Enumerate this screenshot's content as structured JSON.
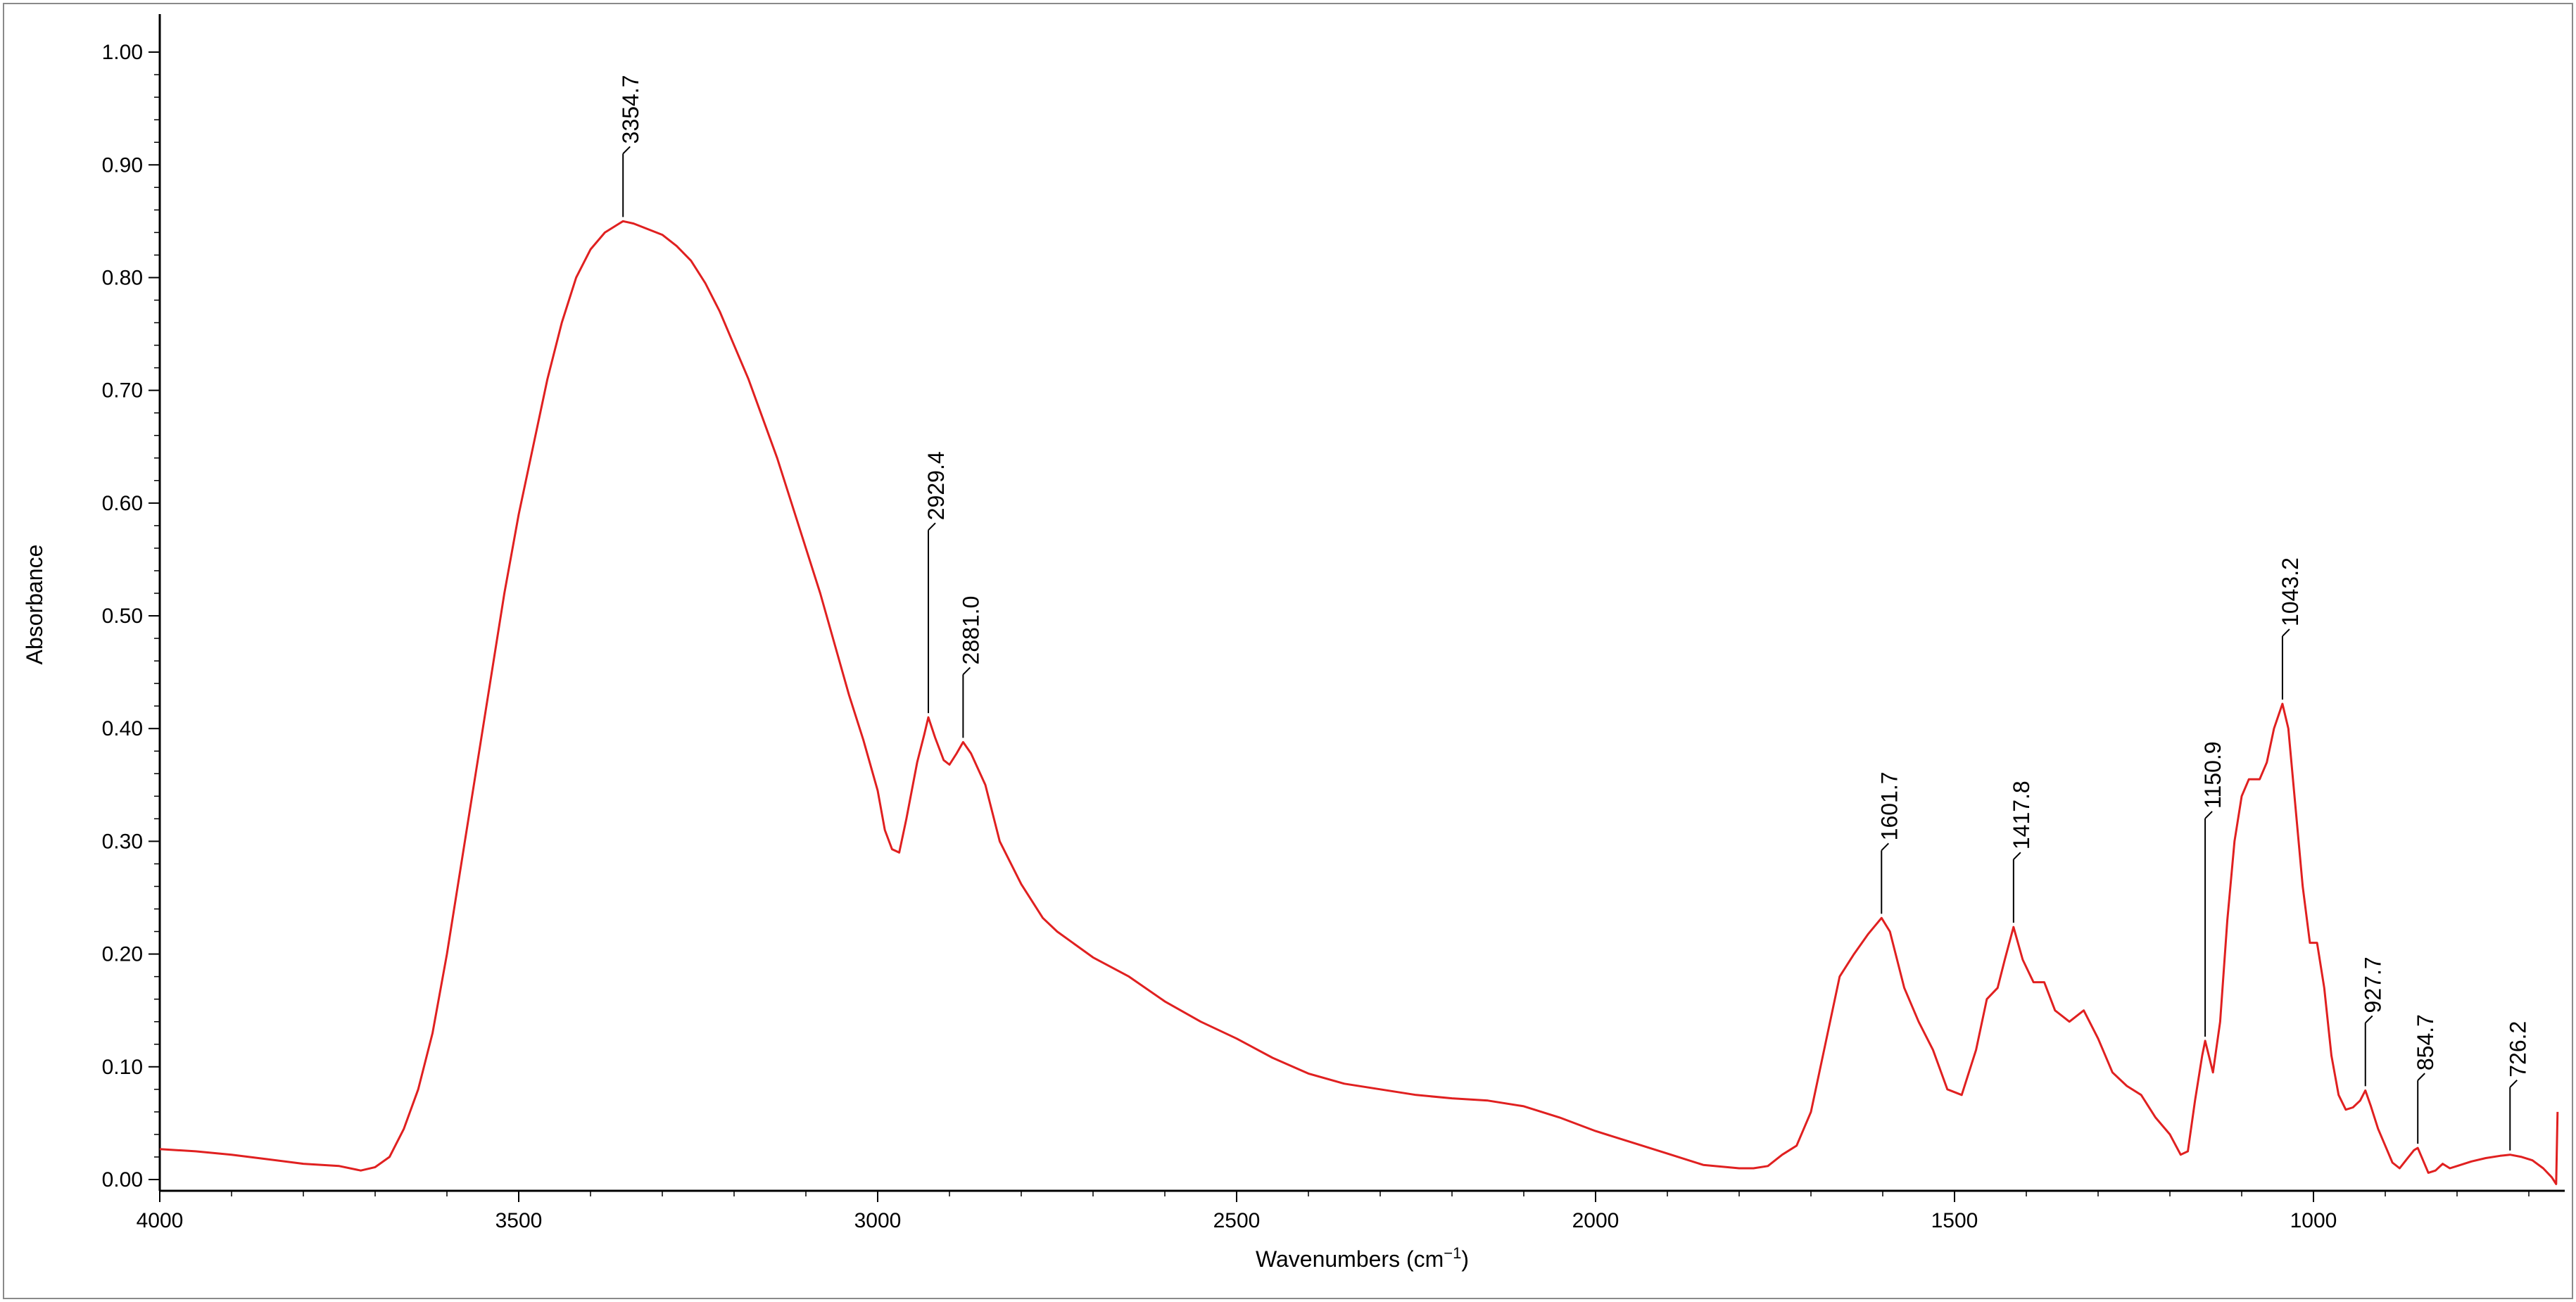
{
  "chart_data": {
    "type": "line",
    "title": "",
    "xlabel": "Wavenumbers (cm",
    "xlabel_superscript": "−1",
    "xlabel_suffix": ")",
    "ylabel": "Absorbance",
    "xlim": [
      4000,
      650
    ],
    "ylim": [
      -0.01,
      1.03
    ],
    "x_reversed": true,
    "grid": false,
    "line_color": "#e02020",
    "axis_color": "#000000",
    "x_ticks": [
      {
        "value": 4000,
        "label": "4000"
      },
      {
        "value": 3500,
        "label": "3500"
      },
      {
        "value": 3000,
        "label": "3000"
      },
      {
        "value": 2500,
        "label": "2500"
      },
      {
        "value": 2000,
        "label": "2000"
      },
      {
        "value": 1500,
        "label": "1500"
      },
      {
        "value": 1000,
        "label": "1000"
      }
    ],
    "y_ticks": [
      {
        "value": 0.0,
        "label": "0.00"
      },
      {
        "value": 0.1,
        "label": "0.10"
      },
      {
        "value": 0.2,
        "label": "0.20"
      },
      {
        "value": 0.3,
        "label": "0.30"
      },
      {
        "value": 0.4,
        "label": "0.40"
      },
      {
        "value": 0.5,
        "label": "0.50"
      },
      {
        "value": 0.6,
        "label": "0.60"
      },
      {
        "value": 0.7,
        "label": "0.70"
      },
      {
        "value": 0.8,
        "label": "0.80"
      },
      {
        "value": 0.9,
        "label": "0.90"
      },
      {
        "value": 1.0,
        "label": "1.00"
      }
    ],
    "series": [
      {
        "name": "spectrum",
        "points": [
          [
            4000,
            0.027
          ],
          [
            3950,
            0.025
          ],
          [
            3900,
            0.022
          ],
          [
            3850,
            0.018
          ],
          [
            3800,
            0.014
          ],
          [
            3750,
            0.012
          ],
          [
            3720,
            0.008
          ],
          [
            3700,
            0.011
          ],
          [
            3680,
            0.02
          ],
          [
            3660,
            0.045
          ],
          [
            3640,
            0.08
          ],
          [
            3620,
            0.13
          ],
          [
            3600,
            0.2
          ],
          [
            3580,
            0.28
          ],
          [
            3560,
            0.36
          ],
          [
            3540,
            0.44
          ],
          [
            3520,
            0.52
          ],
          [
            3500,
            0.59
          ],
          [
            3480,
            0.65
          ],
          [
            3460,
            0.71
          ],
          [
            3440,
            0.76
          ],
          [
            3420,
            0.8
          ],
          [
            3400,
            0.825
          ],
          [
            3380,
            0.84
          ],
          [
            3360,
            0.848
          ],
          [
            3354.7,
            0.85
          ],
          [
            3340,
            0.848
          ],
          [
            3320,
            0.843
          ],
          [
            3300,
            0.838
          ],
          [
            3280,
            0.828
          ],
          [
            3260,
            0.815
          ],
          [
            3240,
            0.795
          ],
          [
            3220,
            0.77
          ],
          [
            3200,
            0.74
          ],
          [
            3180,
            0.71
          ],
          [
            3160,
            0.675
          ],
          [
            3140,
            0.64
          ],
          [
            3120,
            0.6
          ],
          [
            3100,
            0.56
          ],
          [
            3080,
            0.52
          ],
          [
            3060,
            0.475
          ],
          [
            3040,
            0.43
          ],
          [
            3020,
            0.39
          ],
          [
            3000,
            0.345
          ],
          [
            2990,
            0.31
          ],
          [
            2980,
            0.293
          ],
          [
            2970,
            0.29
          ],
          [
            2960,
            0.32
          ],
          [
            2945,
            0.37
          ],
          [
            2935,
            0.395
          ],
          [
            2929.4,
            0.41
          ],
          [
            2920,
            0.392
          ],
          [
            2908,
            0.372
          ],
          [
            2900,
            0.368
          ],
          [
            2890,
            0.378
          ],
          [
            2881.0,
            0.388
          ],
          [
            2870,
            0.378
          ],
          [
            2850,
            0.35
          ],
          [
            2830,
            0.3
          ],
          [
            2800,
            0.262
          ],
          [
            2770,
            0.232
          ],
          [
            2750,
            0.22
          ],
          [
            2700,
            0.197
          ],
          [
            2650,
            0.18
          ],
          [
            2600,
            0.158
          ],
          [
            2550,
            0.14
          ],
          [
            2500,
            0.125
          ],
          [
            2450,
            0.108
          ],
          [
            2400,
            0.094
          ],
          [
            2350,
            0.085
          ],
          [
            2300,
            0.08
          ],
          [
            2250,
            0.075
          ],
          [
            2200,
            0.072
          ],
          [
            2150,
            0.07
          ],
          [
            2100,
            0.065
          ],
          [
            2050,
            0.055
          ],
          [
            2000,
            0.043
          ],
          [
            1950,
            0.033
          ],
          [
            1900,
            0.023
          ],
          [
            1850,
            0.013
          ],
          [
            1800,
            0.01
          ],
          [
            1780,
            0.01
          ],
          [
            1760,
            0.012
          ],
          [
            1740,
            0.022
          ],
          [
            1720,
            0.03
          ],
          [
            1700,
            0.06
          ],
          [
            1680,
            0.12
          ],
          [
            1660,
            0.18
          ],
          [
            1640,
            0.2
          ],
          [
            1620,
            0.218
          ],
          [
            1601.7,
            0.232
          ],
          [
            1590,
            0.22
          ],
          [
            1570,
            0.17
          ],
          [
            1550,
            0.14
          ],
          [
            1530,
            0.115
          ],
          [
            1510,
            0.08
          ],
          [
            1490,
            0.075
          ],
          [
            1470,
            0.115
          ],
          [
            1455,
            0.16
          ],
          [
            1440,
            0.17
          ],
          [
            1430,
            0.195
          ],
          [
            1417.8,
            0.224
          ],
          [
            1405,
            0.195
          ],
          [
            1390,
            0.175
          ],
          [
            1375,
            0.175
          ],
          [
            1360,
            0.15
          ],
          [
            1340,
            0.14
          ],
          [
            1320,
            0.15
          ],
          [
            1300,
            0.125
          ],
          [
            1280,
            0.095
          ],
          [
            1260,
            0.083
          ],
          [
            1240,
            0.075
          ],
          [
            1220,
            0.055
          ],
          [
            1200,
            0.04
          ],
          [
            1185,
            0.022
          ],
          [
            1175,
            0.025
          ],
          [
            1165,
            0.07
          ],
          [
            1155,
            0.11
          ],
          [
            1150.9,
            0.123
          ],
          [
            1145,
            0.108
          ],
          [
            1140,
            0.095
          ],
          [
            1130,
            0.14
          ],
          [
            1120,
            0.23
          ],
          [
            1110,
            0.3
          ],
          [
            1100,
            0.34
          ],
          [
            1090,
            0.355
          ],
          [
            1075,
            0.355
          ],
          [
            1065,
            0.37
          ],
          [
            1055,
            0.4
          ],
          [
            1043.2,
            0.422
          ],
          [
            1035,
            0.4
          ],
          [
            1025,
            0.33
          ],
          [
            1015,
            0.26
          ],
          [
            1005,
            0.21
          ],
          [
            995,
            0.21
          ],
          [
            985,
            0.17
          ],
          [
            975,
            0.11
          ],
          [
            965,
            0.075
          ],
          [
            955,
            0.062
          ],
          [
            945,
            0.064
          ],
          [
            935,
            0.07
          ],
          [
            927.7,
            0.079
          ],
          [
            920,
            0.065
          ],
          [
            910,
            0.045
          ],
          [
            900,
            0.03
          ],
          [
            890,
            0.015
          ],
          [
            880,
            0.01
          ],
          [
            870,
            0.018
          ],
          [
            860,
            0.026
          ],
          [
            854.7,
            0.028
          ],
          [
            848,
            0.018
          ],
          [
            840,
            0.006
          ],
          [
            830,
            0.008
          ],
          [
            820,
            0.014
          ],
          [
            810,
            0.01
          ],
          [
            800,
            0.012
          ],
          [
            780,
            0.016
          ],
          [
            760,
            0.019
          ],
          [
            740,
            0.021
          ],
          [
            726.2,
            0.022
          ],
          [
            710,
            0.02
          ],
          [
            695,
            0.017
          ],
          [
            680,
            0.01
          ],
          [
            668,
            0.002
          ],
          [
            662,
            -0.004
          ],
          [
            660,
            0.06
          ]
        ]
      }
    ],
    "peaks": [
      {
        "x": 3354.7,
        "y": 0.85,
        "label": "3354.7"
      },
      {
        "x": 2929.4,
        "y": 0.41,
        "label": "2929.4"
      },
      {
        "x": 2881.0,
        "y": 0.388,
        "label": "2881.0"
      },
      {
        "x": 1601.7,
        "y": 0.232,
        "label": "1601.7"
      },
      {
        "x": 1417.8,
        "y": 0.224,
        "label": "1417.8"
      },
      {
        "x": 1150.9,
        "y": 0.123,
        "label": "1150.9"
      },
      {
        "x": 1043.2,
        "y": 0.422,
        "label": "1043.2"
      },
      {
        "x": 927.7,
        "y": 0.079,
        "label": "927.7"
      },
      {
        "x": 854.7,
        "y": 0.028,
        "label": "854.7"
      },
      {
        "x": 726.2,
        "y": 0.022,
        "label": "726.2"
      }
    ]
  }
}
